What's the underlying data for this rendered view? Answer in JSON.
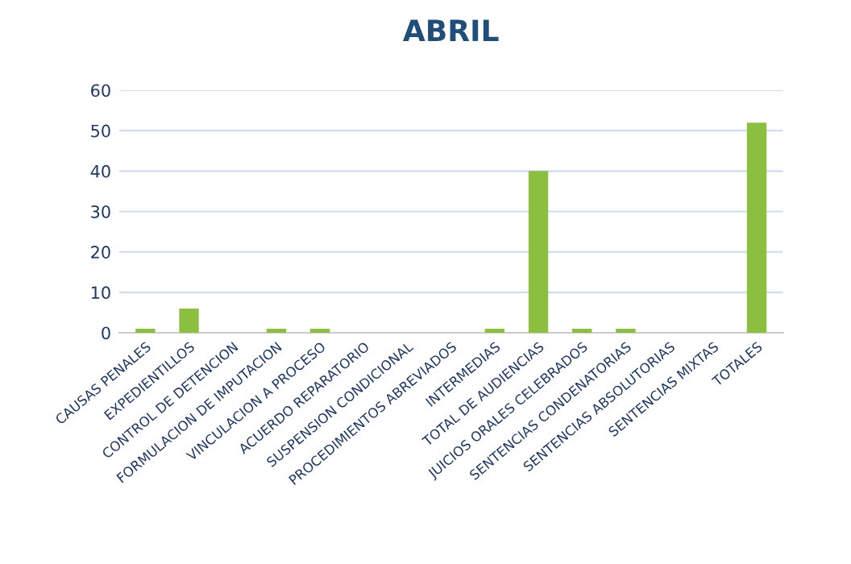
{
  "chart_data": {
    "type": "bar",
    "title": "ABRIL",
    "categories": [
      "CAUSAS PENALES",
      "EXPEDIENTILLOS",
      "CONTROL DE DETENCION",
      "FORMULACION DE IMPUTACION",
      "VINCULACION A PROCESO",
      "ACUERDO REPARATORIO",
      "SUSPENSION CONDICIONAL",
      "PROCEDIMIENTOS ABREVIADOS",
      "INTERMEDIAS",
      "TOTAL DE AUDIENCIAS",
      "JUICIOS ORALES CELEBRADOS",
      "SENTENCIAS CONDENATORIAS",
      "SENTENCIAS ABSOLUTORIAS",
      "SENTENCIAS MIXTAS",
      "TOTALES"
    ],
    "values": [
      1,
      6,
      0,
      1,
      1,
      0,
      0,
      0,
      1,
      40,
      1,
      1,
      0,
      0,
      52
    ],
    "color": "#8cbf3f",
    "ylim": [
      0,
      60
    ],
    "yticks": [
      0,
      10,
      20,
      30,
      40,
      50,
      60
    ],
    "grid": "y",
    "legend": false
  }
}
